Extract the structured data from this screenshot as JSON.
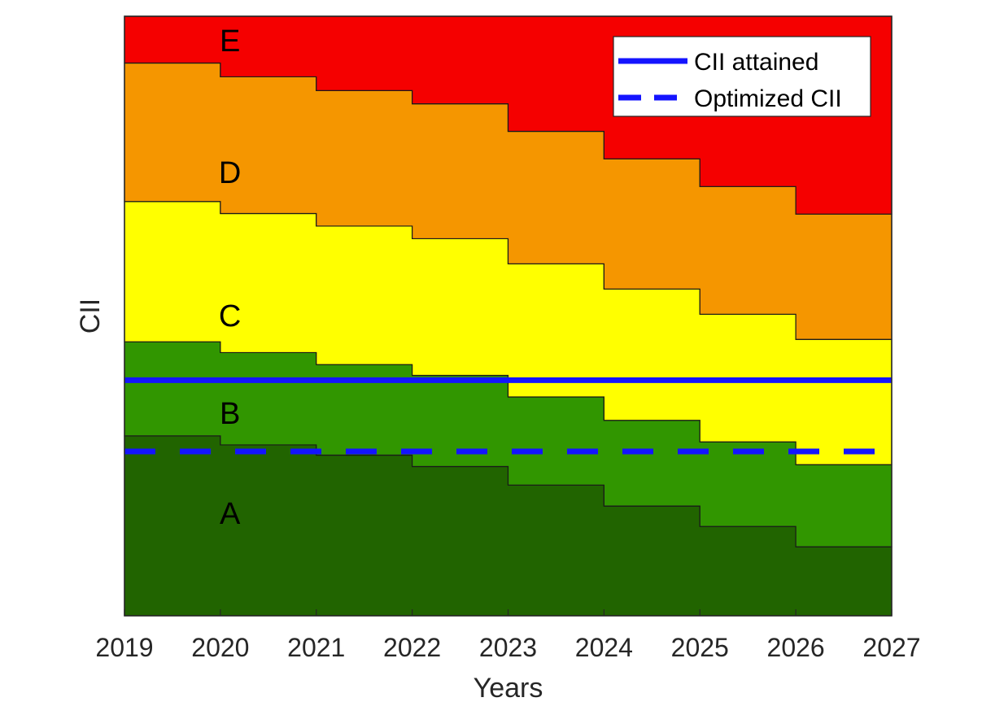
{
  "chart_data": {
    "type": "area",
    "xlabel": "Years",
    "ylabel": "CII",
    "x_ticks": [
      "2019",
      "2020",
      "2021",
      "2022",
      "2023",
      "2024",
      "2025",
      "2026",
      "2027"
    ],
    "xlim": [
      2019,
      2027
    ],
    "ylim": [
      0,
      100
    ],
    "y_ticks_shown": false,
    "grid": false,
    "legend_position": "top-right",
    "bands": [
      {
        "name": "A",
        "color": "#216400",
        "upper": [
          30,
          28.5,
          26.8,
          24.9,
          21.8,
          18.3,
          14.9,
          11.5
        ]
      },
      {
        "name": "B",
        "color": "#319600",
        "upper": [
          45.7,
          43.9,
          41.9,
          40.1,
          36.5,
          32.6,
          29.0,
          25.2
        ]
      },
      {
        "name": "C",
        "color": "#ffff00",
        "upper": [
          69.1,
          67.1,
          65.0,
          62.9,
          58.7,
          54.5,
          50.3,
          46.1
        ]
      },
      {
        "name": "D",
        "color": "#f59600",
        "upper": [
          92.2,
          89.9,
          87.6,
          85.4,
          80.8,
          76.2,
          71.6,
          67.0
        ]
      },
      {
        "name": "E",
        "color": "#f50000",
        "upper": [
          100,
          100,
          100,
          100,
          100,
          100,
          100,
          100
        ]
      }
    ],
    "series": [
      {
        "name": "CII attained",
        "style": "solid",
        "color": "#1414ff",
        "value": 39.3
      },
      {
        "name": "Optimized CII",
        "style": "dashed",
        "color": "#1414ff",
        "value": 27.4
      }
    ]
  }
}
